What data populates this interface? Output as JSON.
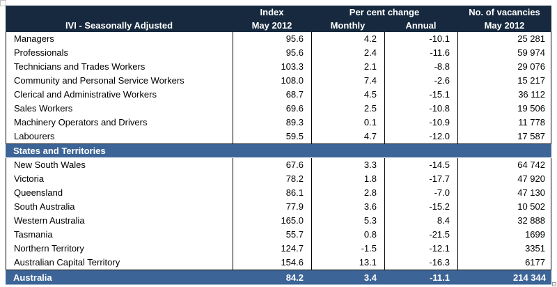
{
  "chart_data": {
    "type": "table",
    "title": "IVI - Seasonally Adjusted",
    "column_headers": {
      "label": "IVI - Seasonally Adjusted",
      "index_group": "Index",
      "index_sub": "May 2012",
      "change_group": "Per cent change",
      "monthly_sub": "Monthly",
      "annual_sub": "Annual",
      "vacancies_group": "No. of vacancies",
      "vacancies_sub": "May 2012"
    },
    "sections": [
      {
        "heading": "",
        "rows": [
          [
            "Managers",
            "95.6",
            "4.2",
            "-10.1",
            "25 281"
          ],
          [
            "Professionals",
            "95.6",
            "2.4",
            "-11.6",
            "59 974"
          ],
          [
            "Technicians and Trades Workers",
            "103.3",
            "2.1",
            "-8.8",
            "29 076"
          ],
          [
            "Community and Personal Service Workers",
            "108.0",
            "7.4",
            "-2.6",
            "15 217"
          ],
          [
            "Clerical and Administrative Workers",
            "68.7",
            "4.5",
            "-15.1",
            "36 112"
          ],
          [
            "Sales Workers",
            "69.6",
            "2.5",
            "-10.8",
            "19 506"
          ],
          [
            "Machinery Operators and Drivers",
            "89.3",
            "0.1",
            "-10.9",
            "11 778"
          ],
          [
            "Labourers",
            "59.5",
            "4.7",
            "-12.0",
            "17 587"
          ]
        ]
      },
      {
        "heading": "States and Territories",
        "rows": [
          [
            "New South Wales",
            "67.6",
            "3.3",
            "-14.5",
            "64 742"
          ],
          [
            "Victoria",
            "78.2",
            "1.8",
            "-17.7",
            "47 920"
          ],
          [
            "Queensland",
            "86.1",
            "2.8",
            "-7.0",
            "47 130"
          ],
          [
            "South Australia",
            "77.9",
            "3.6",
            "-15.2",
            "10 502"
          ],
          [
            "Western Australia",
            "165.0",
            "5.3",
            "8.4",
            "32 888"
          ],
          [
            "Tasmania",
            "55.7",
            "0.8",
            "-21.5",
            "1699"
          ],
          [
            "Northern Territory",
            "124.7",
            "-1.5",
            "-12.1",
            "3351"
          ],
          [
            "Australian Capital Territory",
            "154.6",
            "13.1",
            "-16.3",
            "6177"
          ]
        ]
      }
    ],
    "footer_row": [
      "Australia",
      "84.2",
      "3.4",
      "-11.1",
      "214 344"
    ],
    "colors": {
      "header_bg": "#16293F",
      "band_bg": "#3D6497",
      "footer_bg": "#3D6497",
      "text_on_dark": "#FFFFFF",
      "grid_line": "#000000"
    }
  }
}
